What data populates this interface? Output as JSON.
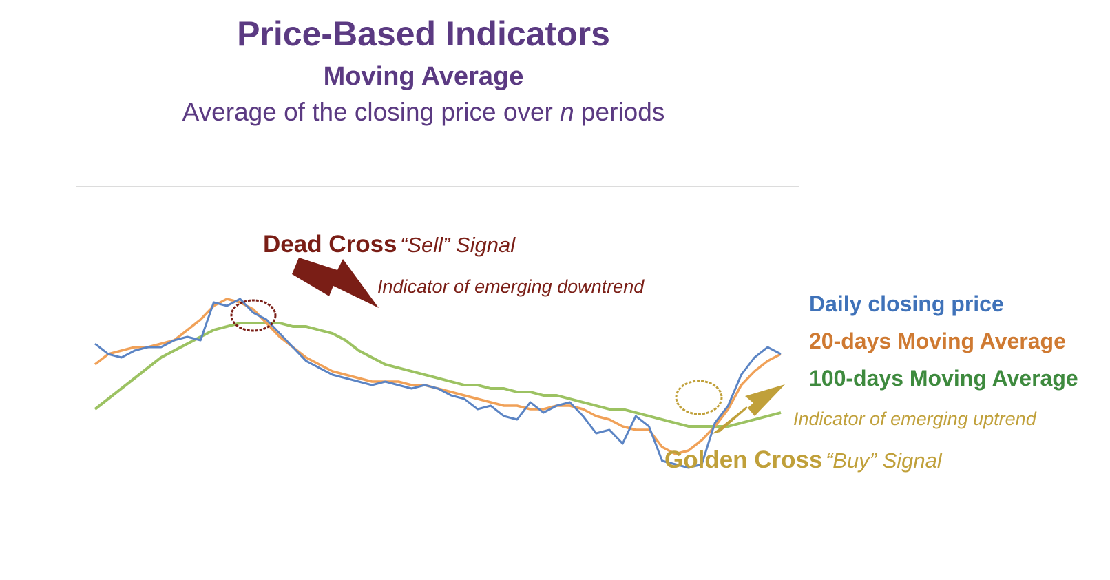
{
  "header": {
    "title": "Price-Based Indicators",
    "subtitle": "Moving Average",
    "description_before": "Average of the closing price over ",
    "description_var": "n",
    "description_after": " periods"
  },
  "annotations": {
    "dead_cross_label": "Dead Cross",
    "dead_cross_signal": "“Sell” Signal",
    "dead_cross_note": "Indicator of emerging downtrend",
    "golden_cross_label": "Golden Cross",
    "golden_cross_signal": "“Buy” Signal",
    "golden_cross_note": "Indicator of emerging uptrend"
  },
  "legend": [
    {
      "label": "Daily closing price",
      "color": "#3f72b9"
    },
    {
      "label": "20-days Moving Average",
      "color": "#cf7a32"
    },
    {
      "label": "100-days Moving Average",
      "color": "#3e8a3e"
    }
  ],
  "colors": {
    "price": "#5b84c4",
    "ma20": "#f0a158",
    "ma100": "#9cc262",
    "dead_cross": "#7a1e16",
    "golden_cross": "#c0a03a",
    "title": "#5b3a82"
  },
  "chart_data": {
    "type": "line",
    "title": "",
    "xlabel": "",
    "ylabel": "",
    "grid": false,
    "legend_position": "right",
    "x": [
      0,
      10,
      20,
      30,
      40,
      50,
      60,
      70,
      80,
      90,
      100,
      110,
      120,
      130,
      140,
      150,
      160,
      170,
      180,
      190,
      200,
      210,
      220,
      230,
      240,
      250,
      260,
      270,
      280,
      290,
      300,
      310,
      320,
      330,
      340,
      350,
      360,
      370,
      380,
      390,
      400,
      410,
      420,
      430,
      440,
      450,
      460,
      470,
      480,
      490,
      500,
      510,
      520
    ],
    "ylim": [
      0,
      100
    ],
    "series": [
      {
        "name": "Daily closing price",
        "values": [
          59,
          56,
          55,
          57,
          58,
          58,
          60,
          61,
          60,
          71,
          70,
          72,
          68,
          66,
          62,
          58,
          54,
          52,
          50,
          49,
          48,
          47,
          48,
          47,
          46,
          47,
          46,
          44,
          43,
          40,
          41,
          38,
          37,
          42,
          39,
          41,
          42,
          38,
          33,
          34,
          30,
          38,
          35,
          25,
          24,
          23,
          24,
          36,
          41,
          50,
          55,
          58,
          56
        ]
      },
      {
        "name": "20-days Moving Average",
        "values": [
          53,
          56,
          57,
          58,
          58,
          59,
          60,
          63,
          66,
          70,
          72,
          71,
          69,
          65,
          61,
          58,
          55,
          53,
          51,
          50,
          49,
          48,
          48,
          48,
          47,
          47,
          46,
          45,
          44,
          43,
          42,
          41,
          41,
          40,
          40,
          41,
          41,
          40,
          38,
          37,
          35,
          34,
          34,
          29,
          27,
          28,
          31,
          35,
          40,
          47,
          51,
          54,
          56
        ]
      },
      {
        "name": "100-days Moving Average",
        "values": [
          40,
          43,
          46,
          49,
          52,
          55,
          57,
          59,
          61,
          63,
          64,
          65,
          65,
          65,
          65,
          64,
          64,
          63,
          62,
          60,
          57,
          55,
          53,
          52,
          51,
          50,
          49,
          48,
          47,
          47,
          46,
          46,
          45,
          45,
          44,
          44,
          43,
          42,
          41,
          40,
          40,
          39,
          38,
          37,
          36,
          35,
          35,
          35,
          35,
          36,
          37,
          38,
          39
        ]
      }
    ]
  }
}
